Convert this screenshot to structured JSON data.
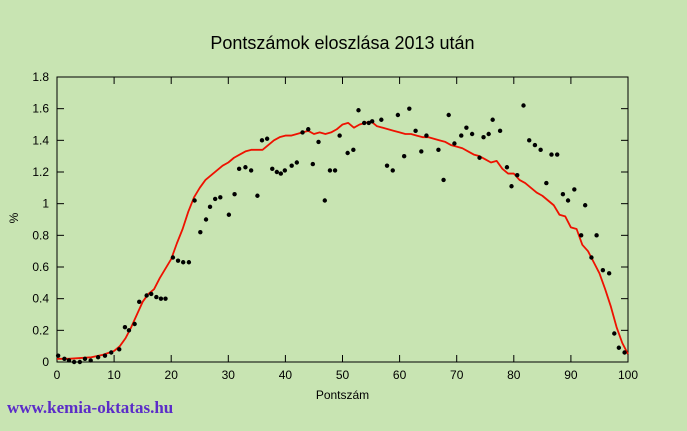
{
  "colors": {
    "background": "#c8e4b2",
    "trend_line": "#ee1100",
    "points": "#000000",
    "axis": "#000000",
    "text": "#000000",
    "watermark": "#5b2cc8"
  },
  "footer": {
    "watermark": "www.kemia-oktatas.hu"
  },
  "chart_data": {
    "type": "scatter",
    "title": "Pontszámok eloszlása 2013 után",
    "xlabel": "Pontszám",
    "ylabel": "%",
    "xlim": [
      0,
      100
    ],
    "ylim": [
      0,
      1.8
    ],
    "grid": false,
    "legend": "none",
    "x_ticks": [
      "0",
      "10",
      "20",
      "30",
      "40",
      "50",
      "60",
      "70",
      "80",
      "90",
      "100"
    ],
    "x_tick_values": [
      0,
      10,
      20,
      30,
      40,
      50,
      60,
      70,
      80,
      90,
      100
    ],
    "y_ticks": [
      "0",
      "0.2",
      "0.4",
      "0.6",
      "0.8",
      "1",
      "1.2",
      "1.4",
      "1.6",
      "1.8"
    ],
    "y_tick_values": [
      0,
      0.2,
      0.4,
      0.6,
      0.8,
      1,
      1.2,
      1.4,
      1.6,
      1.8
    ],
    "series": [
      {
        "name": "scatter-points",
        "type": "scatter",
        "points": [
          [
            0.2,
            0.04
          ],
          [
            1.3,
            0.02
          ],
          [
            2.1,
            0.01
          ],
          [
            3.0,
            0.0
          ],
          [
            4.0,
            0.0
          ],
          [
            4.9,
            0.02
          ],
          [
            5.9,
            0.01
          ],
          [
            7.2,
            0.03
          ],
          [
            8.4,
            0.04
          ],
          [
            9.5,
            0.06
          ],
          [
            10.9,
            0.08
          ],
          [
            11.9,
            0.22
          ],
          [
            12.6,
            0.2
          ],
          [
            13.6,
            0.24
          ],
          [
            14.4,
            0.38
          ],
          [
            15.7,
            0.42
          ],
          [
            16.5,
            0.43
          ],
          [
            17.4,
            0.41
          ],
          [
            18.2,
            0.4
          ],
          [
            19.0,
            0.4
          ],
          [
            20.3,
            0.66
          ],
          [
            21.2,
            0.64
          ],
          [
            22.1,
            0.63
          ],
          [
            23.1,
            0.63
          ],
          [
            24.1,
            1.02
          ],
          [
            25.1,
            0.82
          ],
          [
            26.1,
            0.9
          ],
          [
            26.8,
            0.98
          ],
          [
            27.7,
            1.03
          ],
          [
            28.6,
            1.04
          ],
          [
            30.1,
            0.93
          ],
          [
            31.1,
            1.06
          ],
          [
            31.9,
            1.22
          ],
          [
            33.0,
            1.23
          ],
          [
            34.0,
            1.21
          ],
          [
            35.1,
            1.05
          ],
          [
            35.9,
            1.4
          ],
          [
            36.8,
            1.41
          ],
          [
            37.7,
            1.22
          ],
          [
            38.5,
            1.2
          ],
          [
            39.2,
            1.19
          ],
          [
            39.9,
            1.21
          ],
          [
            41.1,
            1.24
          ],
          [
            42.0,
            1.26
          ],
          [
            43.0,
            1.45
          ],
          [
            44.0,
            1.47
          ],
          [
            44.8,
            1.25
          ],
          [
            45.8,
            1.39
          ],
          [
            46.9,
            1.02
          ],
          [
            47.8,
            1.21
          ],
          [
            48.7,
            1.21
          ],
          [
            49.5,
            1.43
          ],
          [
            50.9,
            1.32
          ],
          [
            51.9,
            1.34
          ],
          [
            52.8,
            1.59
          ],
          [
            53.8,
            1.51
          ],
          [
            54.6,
            1.51
          ],
          [
            55.2,
            1.52
          ],
          [
            56.8,
            1.53
          ],
          [
            57.8,
            1.24
          ],
          [
            58.8,
            1.21
          ],
          [
            59.7,
            1.56
          ],
          [
            60.8,
            1.3
          ],
          [
            61.7,
            1.6
          ],
          [
            62.8,
            1.46
          ],
          [
            63.8,
            1.33
          ],
          [
            64.7,
            1.43
          ],
          [
            66.8,
            1.34
          ],
          [
            67.7,
            1.15
          ],
          [
            68.6,
            1.56
          ],
          [
            69.6,
            1.38
          ],
          [
            70.8,
            1.43
          ],
          [
            71.7,
            1.48
          ],
          [
            72.7,
            1.44
          ],
          [
            74.0,
            1.29
          ],
          [
            74.7,
            1.42
          ],
          [
            75.6,
            1.44
          ],
          [
            76.3,
            1.53
          ],
          [
            77.6,
            1.46
          ],
          [
            78.8,
            1.23
          ],
          [
            79.6,
            1.11
          ],
          [
            80.6,
            1.18
          ],
          [
            81.7,
            1.62
          ],
          [
            82.7,
            1.4
          ],
          [
            83.7,
            1.37
          ],
          [
            84.7,
            1.34
          ],
          [
            85.7,
            1.13
          ],
          [
            86.6,
            1.31
          ],
          [
            87.6,
            1.31
          ],
          [
            88.6,
            1.06
          ],
          [
            89.5,
            1.02
          ],
          [
            90.6,
            1.09
          ],
          [
            91.8,
            0.8
          ],
          [
            92.5,
            0.99
          ],
          [
            93.6,
            0.66
          ],
          [
            94.5,
            0.8
          ],
          [
            95.6,
            0.58
          ],
          [
            96.7,
            0.56
          ],
          [
            97.6,
            0.18
          ],
          [
            98.4,
            0.09
          ],
          [
            99.4,
            0.06
          ]
        ]
      },
      {
        "name": "trend-line",
        "type": "line",
        "points": [
          [
            0,
            0.02
          ],
          [
            2,
            0.02
          ],
          [
            4,
            0.025
          ],
          [
            6,
            0.03
          ],
          [
            8,
            0.045
          ],
          [
            10,
            0.07
          ],
          [
            11,
            0.1
          ],
          [
            12,
            0.15
          ],
          [
            13,
            0.22
          ],
          [
            14,
            0.3
          ],
          [
            15,
            0.38
          ],
          [
            16,
            0.43
          ],
          [
            17,
            0.46
          ],
          [
            18,
            0.53
          ],
          [
            19,
            0.59
          ],
          [
            20,
            0.65
          ],
          [
            21,
            0.75
          ],
          [
            22,
            0.84
          ],
          [
            23,
            0.95
          ],
          [
            24,
            1.04
          ],
          [
            25,
            1.1
          ],
          [
            26,
            1.15
          ],
          [
            27,
            1.18
          ],
          [
            28,
            1.21
          ],
          [
            29,
            1.24
          ],
          [
            30,
            1.26
          ],
          [
            31,
            1.29
          ],
          [
            32,
            1.31
          ],
          [
            33,
            1.33
          ],
          [
            34,
            1.34
          ],
          [
            35,
            1.34
          ],
          [
            36,
            1.34
          ],
          [
            37,
            1.37
          ],
          [
            38,
            1.4
          ],
          [
            39,
            1.42
          ],
          [
            40,
            1.43
          ],
          [
            41,
            1.43
          ],
          [
            42,
            1.44
          ],
          [
            43,
            1.45
          ],
          [
            44,
            1.46
          ],
          [
            45,
            1.44
          ],
          [
            46,
            1.45
          ],
          [
            47,
            1.44
          ],
          [
            48,
            1.45
          ],
          [
            49,
            1.47
          ],
          [
            50,
            1.5
          ],
          [
            51,
            1.51
          ],
          [
            52,
            1.48
          ],
          [
            53,
            1.5
          ],
          [
            54,
            1.51
          ],
          [
            55,
            1.52
          ],
          [
            56,
            1.49
          ],
          [
            57,
            1.48
          ],
          [
            58,
            1.47
          ],
          [
            59,
            1.46
          ],
          [
            60,
            1.45
          ],
          [
            61,
            1.44
          ],
          [
            62,
            1.44
          ],
          [
            63,
            1.43
          ],
          [
            64,
            1.42
          ],
          [
            65,
            1.42
          ],
          [
            66,
            1.41
          ],
          [
            67,
            1.4
          ],
          [
            68,
            1.39
          ],
          [
            69,
            1.37
          ],
          [
            70,
            1.36
          ],
          [
            71,
            1.35
          ],
          [
            72,
            1.33
          ],
          [
            73,
            1.31
          ],
          [
            74,
            1.3
          ],
          [
            75,
            1.28
          ],
          [
            76,
            1.26
          ],
          [
            77,
            1.27
          ],
          [
            78,
            1.22
          ],
          [
            79,
            1.19
          ],
          [
            80,
            1.19
          ],
          [
            81,
            1.15
          ],
          [
            82,
            1.13
          ],
          [
            83,
            1.1
          ],
          [
            84,
            1.07
          ],
          [
            85,
            1.05
          ],
          [
            86,
            1.02
          ],
          [
            87,
            0.99
          ],
          [
            88,
            0.93
          ],
          [
            89,
            0.92
          ],
          [
            90,
            0.85
          ],
          [
            91,
            0.84
          ],
          [
            92,
            0.74
          ],
          [
            93,
            0.7
          ],
          [
            94,
            0.63
          ],
          [
            95,
            0.56
          ],
          [
            96,
            0.46
          ],
          [
            97,
            0.35
          ],
          [
            98,
            0.22
          ],
          [
            99,
            0.12
          ],
          [
            100,
            0.05
          ]
        ]
      }
    ]
  }
}
